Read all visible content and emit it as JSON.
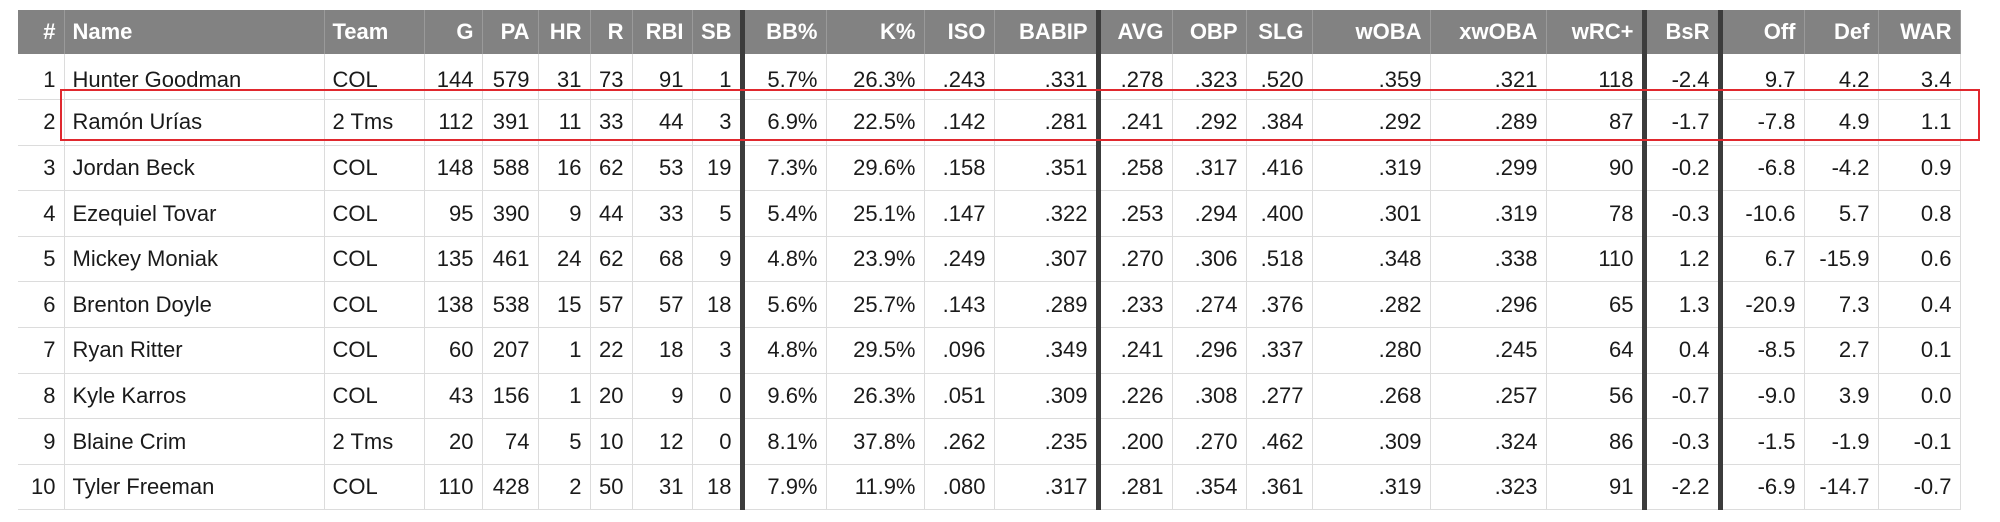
{
  "table": {
    "columns": [
      {
        "key": "rank",
        "label": "#",
        "align": "right"
      },
      {
        "key": "name",
        "label": "Name",
        "align": "left"
      },
      {
        "key": "team",
        "label": "Team",
        "align": "left"
      },
      {
        "key": "g",
        "label": "G",
        "align": "right"
      },
      {
        "key": "pa",
        "label": "PA",
        "align": "right"
      },
      {
        "key": "hr",
        "label": "HR",
        "align": "right"
      },
      {
        "key": "r",
        "label": "R",
        "align": "right"
      },
      {
        "key": "rbi",
        "label": "RBI",
        "align": "right"
      },
      {
        "key": "sb",
        "label": "SB",
        "align": "right"
      },
      {
        "key": "bb_pct",
        "label": "BB%",
        "align": "right"
      },
      {
        "key": "k_pct",
        "label": "K%",
        "align": "right"
      },
      {
        "key": "iso",
        "label": "ISO",
        "align": "right"
      },
      {
        "key": "babip",
        "label": "BABIP",
        "align": "right"
      },
      {
        "key": "avg",
        "label": "AVG",
        "align": "right"
      },
      {
        "key": "obp",
        "label": "OBP",
        "align": "right"
      },
      {
        "key": "slg",
        "label": "SLG",
        "align": "right"
      },
      {
        "key": "woba",
        "label": "wOBA",
        "align": "right"
      },
      {
        "key": "xwoba",
        "label": "xwOBA",
        "align": "right"
      },
      {
        "key": "wrc_plus",
        "label": "wRC+",
        "align": "right"
      },
      {
        "key": "bsr",
        "label": "BsR",
        "align": "right"
      },
      {
        "key": "off",
        "label": "Off",
        "align": "right"
      },
      {
        "key": "def",
        "label": "Def",
        "align": "right"
      },
      {
        "key": "war",
        "label": "WAR",
        "align": "right"
      }
    ],
    "rows": [
      [
        "1",
        "Hunter Goodman",
        "COL",
        "144",
        "579",
        "31",
        "73",
        "91",
        "1",
        "5.7%",
        "26.3%",
        ".243",
        ".331",
        ".278",
        ".323",
        ".520",
        ".359",
        ".321",
        "118",
        "-2.4",
        "9.7",
        "4.2",
        "3.4"
      ],
      [
        "2",
        "Ramón Urías",
        "2 Tms",
        "112",
        "391",
        "11",
        "33",
        "44",
        "3",
        "6.9%",
        "22.5%",
        ".142",
        ".281",
        ".241",
        ".292",
        ".384",
        ".292",
        ".289",
        "87",
        "-1.7",
        "-7.8",
        "4.9",
        "1.1"
      ],
      [
        "3",
        "Jordan Beck",
        "COL",
        "148",
        "588",
        "16",
        "62",
        "53",
        "19",
        "7.3%",
        "29.6%",
        ".158",
        ".351",
        ".258",
        ".317",
        ".416",
        ".319",
        ".299",
        "90",
        "-0.2",
        "-6.8",
        "-4.2",
        "0.9"
      ],
      [
        "4",
        "Ezequiel Tovar",
        "COL",
        "95",
        "390",
        "9",
        "44",
        "33",
        "5",
        "5.4%",
        "25.1%",
        ".147",
        ".322",
        ".253",
        ".294",
        ".400",
        ".301",
        ".319",
        "78",
        "-0.3",
        "-10.6",
        "5.7",
        "0.8"
      ],
      [
        "5",
        "Mickey Moniak",
        "COL",
        "135",
        "461",
        "24",
        "62",
        "68",
        "9",
        "4.8%",
        "23.9%",
        ".249",
        ".307",
        ".270",
        ".306",
        ".518",
        ".348",
        ".338",
        "110",
        "1.2",
        "6.7",
        "-15.9",
        "0.6"
      ],
      [
        "6",
        "Brenton Doyle",
        "COL",
        "138",
        "538",
        "15",
        "57",
        "57",
        "18",
        "5.6%",
        "25.7%",
        ".143",
        ".289",
        ".233",
        ".274",
        ".376",
        ".282",
        ".296",
        "65",
        "1.3",
        "-20.9",
        "7.3",
        "0.4"
      ],
      [
        "7",
        "Ryan Ritter",
        "COL",
        "60",
        "207",
        "1",
        "22",
        "18",
        "3",
        "4.8%",
        "29.5%",
        ".096",
        ".349",
        ".241",
        ".296",
        ".337",
        ".280",
        ".245",
        "64",
        "0.4",
        "-8.5",
        "2.7",
        "0.1"
      ],
      [
        "8",
        "Kyle Karros",
        "COL",
        "43",
        "156",
        "1",
        "20",
        "9",
        "0",
        "9.6%",
        "26.3%",
        ".051",
        ".309",
        ".226",
        ".308",
        ".277",
        ".268",
        ".257",
        "56",
        "-0.7",
        "-9.0",
        "3.9",
        "0.0"
      ],
      [
        "9",
        "Blaine Crim",
        "2 Tms",
        "20",
        "74",
        "5",
        "10",
        "12",
        "0",
        "8.1%",
        "37.8%",
        ".262",
        ".235",
        ".200",
        ".270",
        ".462",
        ".309",
        ".324",
        "86",
        "-0.3",
        "-1.5",
        "-1.9",
        "-0.1"
      ],
      [
        "10",
        "Tyler Freeman",
        "COL",
        "110",
        "428",
        "2",
        "50",
        "31",
        "18",
        "7.9%",
        "11.9%",
        ".080",
        ".317",
        ".281",
        ".354",
        ".361",
        ".319",
        ".323",
        "91",
        "-2.2",
        "-6.9",
        "-14.7",
        "-0.7"
      ]
    ]
  },
  "highlight": {
    "row_index": 1,
    "color": "#e0282e"
  },
  "colors": {
    "header_bg": "#828282",
    "header_text": "#ffffff",
    "grid_line": "#dcdcdc",
    "separator": "#3c3c3c"
  }
}
